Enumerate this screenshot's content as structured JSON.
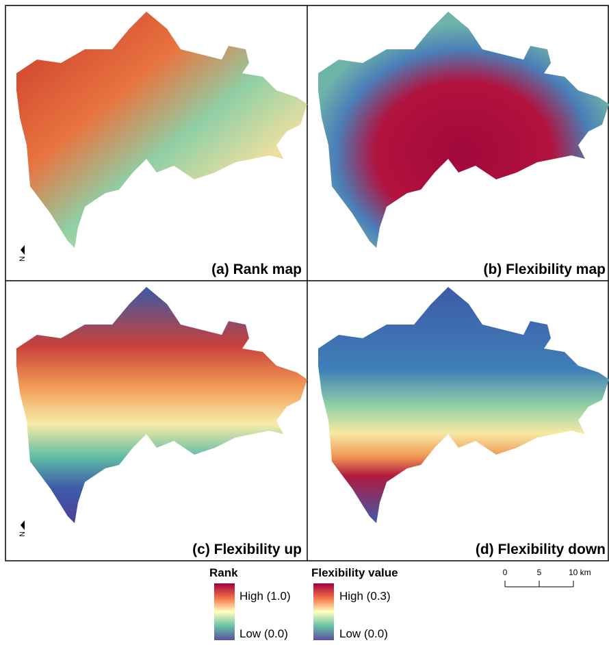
{
  "panels": [
    {
      "label": "(a) Rank map"
    },
    {
      "label": "(b) Flexibility map"
    },
    {
      "label": "(c) Flexibility up"
    },
    {
      "label": "(d) Flexibility down"
    }
  ],
  "north_arrow": "N",
  "legend": {
    "rank": {
      "title": "Rank",
      "high": "High (1.0)",
      "low": "Low (0.0)"
    },
    "flexibility": {
      "title": "Flexibility value",
      "high": "High (0.3)",
      "low": "Low (0.0)"
    }
  },
  "scale_bar": {
    "labels": [
      "0",
      "5",
      "10 km"
    ]
  }
}
